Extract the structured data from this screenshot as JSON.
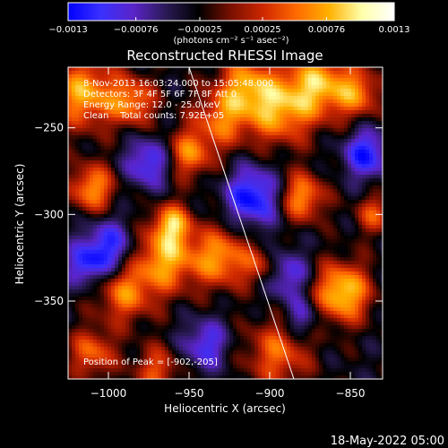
{
  "colorbar": {
    "tick_labels": [
      "-0.0013",
      "-0.00076",
      "-0.00025",
      "0.00025",
      "0.00076",
      "0.0013"
    ],
    "tick_values": [
      -0.0013,
      -0.00076,
      -0.00025,
      0.00025,
      0.00076,
      0.0013
    ],
    "range": [
      -0.0013,
      0.0013
    ],
    "units_label": "(photons cm⁻² s⁻¹ asec⁻²)",
    "colormap": [
      "#0000ff",
      "#3a30ff",
      "#5a24c8",
      "#2a1a55",
      "#000000",
      "#7a1000",
      "#d02800",
      "#ff6a00",
      "#ffb000",
      "#ffffaa",
      "#ffffff"
    ]
  },
  "chart_data": {
    "type": "heatmap",
    "title": "Reconstructed RHESSI Image",
    "xlabel": "Heliocentric X (arcsec)",
    "ylabel": "Heliocentric Y (arcsec)",
    "x_range": [
      -1025,
      -830
    ],
    "y_range": [
      -395,
      -215
    ],
    "x_ticks": [
      -1000,
      -950,
      -900,
      -850
    ],
    "x_tick_labels": [
      "-1000",
      "-950",
      "-900",
      "-850"
    ],
    "y_ticks": [
      -250,
      -300,
      -350
    ],
    "y_tick_labels": [
      "-250",
      "-300",
      "-350"
    ],
    "annotations": {
      "time": "8-Nov-2013 16:03:24.000 to 15:05:48.000",
      "detectors": "Detectors: 3F 4F 5F 6F 7F 8F Att 0",
      "energy": "Energy Range: 12.0 - 25.0 keV",
      "clean": "Clean    Total counts: 7.92E+05",
      "peak": "Position of Peak = [-902,-205]"
    },
    "limb_line": {
      "x": [
        -950,
        -885
      ],
      "y": [
        -215,
        -395
      ]
    },
    "grid": false
  },
  "footer": {
    "timestamp": "18-May-2022 05:00"
  }
}
